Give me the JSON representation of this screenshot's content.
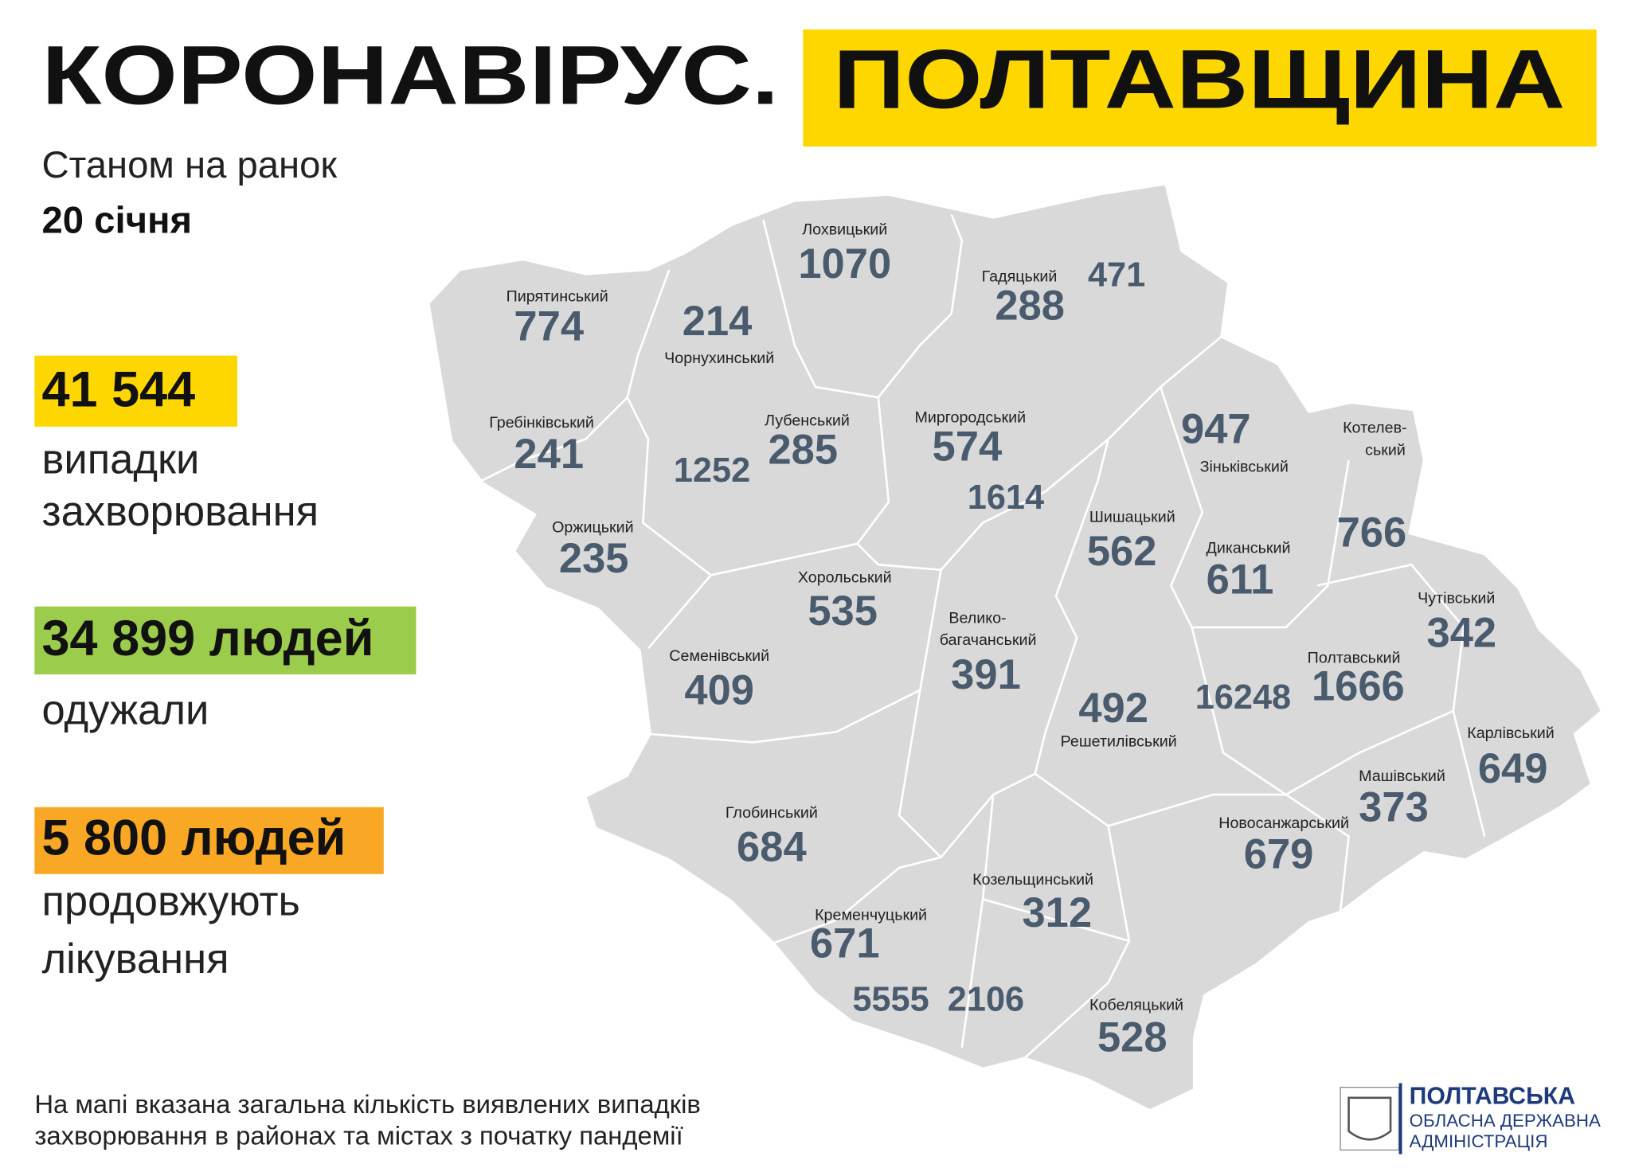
{
  "header": {
    "title": "КОРОНАВІРУС.",
    "highlight": "ПОЛТАВЩИНА"
  },
  "subtitle": {
    "line1": "Станом на ранок",
    "date": "20 січня"
  },
  "stats": [
    {
      "value": "41 544",
      "label": [
        "випадки",
        "захворювання"
      ]
    },
    {
      "value": "34 899 людей",
      "label": [
        "одужали"
      ]
    },
    {
      "value": "5 800 людей",
      "label": [
        "продовжують",
        "лікування"
      ]
    }
  ],
  "districts": [
    {
      "name": "Лохвицький",
      "value": 1070
    },
    {
      "name": "Гадяцький",
      "value": 288
    },
    {
      "value": 471
    },
    {
      "name": "Пирятинський",
      "value": 774
    },
    {
      "name": "Чорнухинський",
      "value": 214
    },
    {
      "name": "Гребінківський",
      "value": 241
    },
    {
      "name": "Лубенський",
      "value": 285
    },
    {
      "value": 1252
    },
    {
      "name": "Миргородський",
      "value": 574
    },
    {
      "value": 1614
    },
    {
      "name": "Зіньківський",
      "value": 947
    },
    {
      "name": [
        "Котелев-",
        "ський"
      ],
      "value": 766
    },
    {
      "name": "Оржицький",
      "value": 235
    },
    {
      "name": "Шишацький",
      "value": 562
    },
    {
      "name": "Диканський",
      "value": 611
    },
    {
      "name": "Хорольський",
      "value": 535
    },
    {
      "name": [
        "Велико-",
        "багачанський"
      ],
      "value": 391
    },
    {
      "name": "Чутівський",
      "value": 342
    },
    {
      "name": "Семенівський",
      "value": 409
    },
    {
      "name": "Полтавський",
      "value": 1666
    },
    {
      "name": "Решетилівський",
      "value": 492
    },
    {
      "value": 16248
    },
    {
      "name": "Карлівський",
      "value": 649
    },
    {
      "name": "Машівський",
      "value": 373
    },
    {
      "name": "Глобинський",
      "value": 684
    },
    {
      "name": "Новосанжарський",
      "value": 679
    },
    {
      "name": "Козельщинський",
      "value": 312
    },
    {
      "name": "Кременчуцький",
      "value": 671
    },
    {
      "value": 5555
    },
    {
      "value": 2106
    },
    {
      "name": "Кобеляцький",
      "value": 528
    }
  ],
  "footnote": [
    "На мапі вказана загальна кількість виявлених випадків",
    "захворювання в районах та містах з початку пандемії"
  ],
  "logo": [
    "ПОЛТАВСЬКА",
    "ОБЛАСНА ДЕРЖАВНА",
    "АДМІНІСТРАЦІЯ"
  ]
}
